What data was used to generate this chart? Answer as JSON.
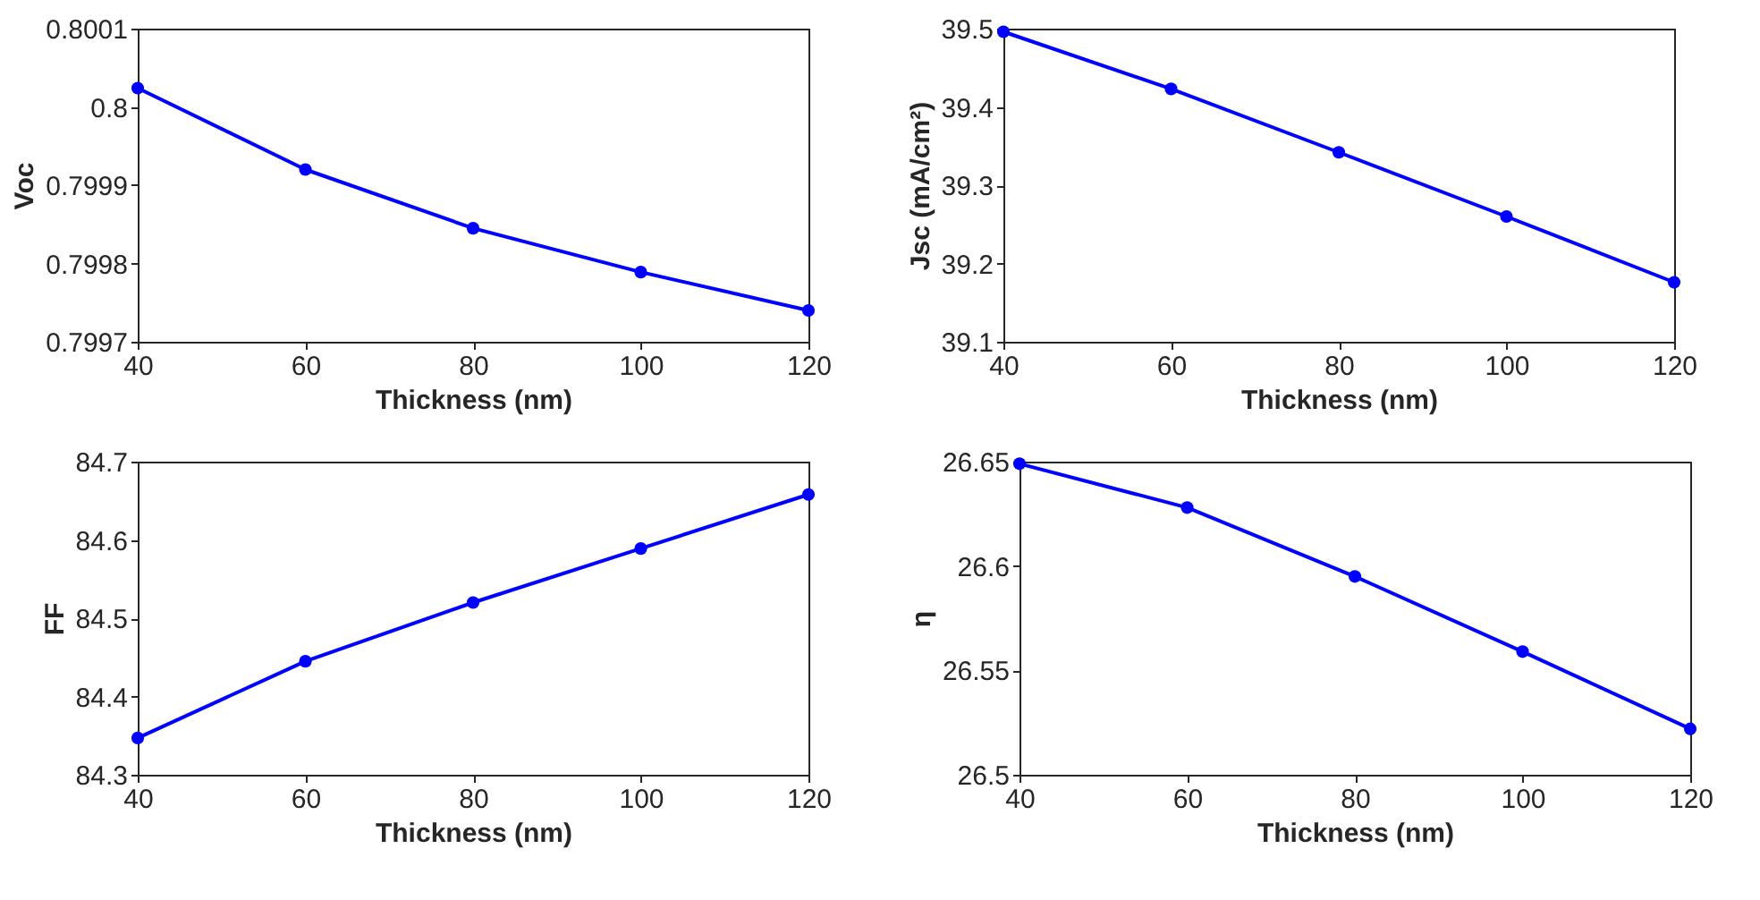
{
  "chart_data": [
    {
      "type": "line",
      "xlabel": "Thickness (nm)",
      "ylabel": "Voc",
      "x": [
        40,
        60,
        80,
        100,
        120
      ],
      "series": [
        {
          "color": "#0000ff",
          "values": [
            0.800024,
            0.79992,
            0.799845,
            0.799789,
            0.79974
          ]
        }
      ],
      "xlim": [
        40,
        120
      ],
      "xticks": [
        40,
        60,
        80,
        100,
        120
      ],
      "ylim": [
        0.7997,
        0.8001
      ],
      "yticks": [
        0.7997,
        0.7998,
        0.7999,
        0.8,
        0.8001
      ],
      "marker": "circle",
      "line_style": "solid",
      "grid": false
    },
    {
      "type": "line",
      "xlabel": "Thickness (nm)",
      "ylabel": "Jsc (mA/cm²)",
      "x": [
        40,
        60,
        80,
        100,
        120
      ],
      "series": [
        {
          "color": "#0000ff",
          "values": [
            39.496,
            39.423,
            39.342,
            39.26,
            39.176
          ]
        }
      ],
      "xlim": [
        40,
        120
      ],
      "xticks": [
        40,
        60,
        80,
        100,
        120
      ],
      "ylim": [
        39.1,
        39.5
      ],
      "yticks": [
        39.1,
        39.2,
        39.3,
        39.4,
        39.5
      ],
      "marker": "circle",
      "line_style": "solid",
      "grid": false
    },
    {
      "type": "line",
      "xlabel": "Thickness (nm)",
      "ylabel": "FF",
      "x": [
        40,
        60,
        80,
        100,
        120
      ],
      "series": [
        {
          "color": "#0000ff",
          "values": [
            84.347,
            84.445,
            84.52,
            84.589,
            84.658
          ]
        }
      ],
      "xlim": [
        40,
        120
      ],
      "xticks": [
        40,
        60,
        80,
        100,
        120
      ],
      "ylim": [
        84.3,
        84.7
      ],
      "yticks": [
        84.3,
        84.4,
        84.5,
        84.6,
        84.7
      ],
      "marker": "circle",
      "line_style": "solid",
      "grid": false
    },
    {
      "type": "line",
      "xlabel": "Thickness (nm)",
      "ylabel": "η",
      "x": [
        40,
        60,
        80,
        100,
        120
      ],
      "series": [
        {
          "color": "#0000ff",
          "values": [
            26.649,
            26.628,
            26.595,
            26.559,
            26.522
          ]
        }
      ],
      "xlim": [
        40,
        120
      ],
      "xticks": [
        40,
        60,
        80,
        100,
        120
      ],
      "ylim": [
        26.5,
        26.65
      ],
      "yticks": [
        26.5,
        26.55,
        26.6,
        26.65
      ],
      "marker": "circle",
      "line_style": "solid",
      "grid": false
    }
  ]
}
